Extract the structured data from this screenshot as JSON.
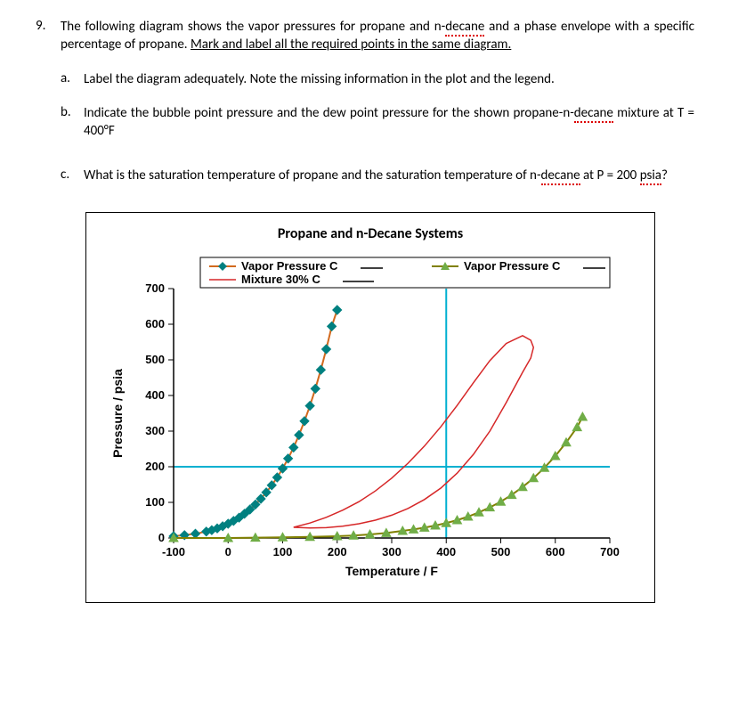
{
  "question": {
    "number": "9.",
    "text_a": "The following diagram shows the vapor pressures for propane and n-",
    "text_decane": "decane",
    "text_b": " and a phase envelope with a specific percentage of propane. ",
    "text_c_underlined": "Mark and label all the required points in the same diagram."
  },
  "subs": {
    "a": {
      "letter": "a.",
      "text": "Label the diagram adequately. Note the missing information in the plot and the legend."
    },
    "b": {
      "letter": "b.",
      "pre": "Indicate the bubble point pressure and the dew point pressure for the shown propane-n-",
      "decane": "decane",
      "post": " mixture at T = 400°F"
    },
    "c": {
      "letter": "c.",
      "pre": "What is the saturation temperature of propane and the saturation temperature of n-",
      "decane": "decane",
      "post": " at P = 200 ",
      "psia": "psia",
      "q": "?"
    }
  },
  "chart": {
    "title": "Propane and n-Decane Systems",
    "legend": {
      "s1": "Vapor Pressure C",
      "s2": "Mixture 30% C",
      "s3": "Vapor Pressure C"
    },
    "ylabel": "Pressure / psia",
    "xlabel": "Temperature / F",
    "xlim": [
      -100,
      700
    ],
    "xtick_step": 100,
    "ylim": [
      0,
      700
    ],
    "ytick_step": 100,
    "colors": {
      "propane_line": "#d2691e",
      "propane_marker": "#008080",
      "decane_line": "#808000",
      "decane_marker": "#70ad47",
      "mixture": "#d62728",
      "crosshair": "#00b0d0",
      "hline": "#00b0d0"
    },
    "crosshair": {
      "x": 400,
      "ymin": 0,
      "ymax": 700
    },
    "hline_y": 200,
    "series": {
      "propane_x": [
        -100,
        -80,
        -60,
        -40,
        -30,
        -20,
        -10,
        0,
        10,
        20,
        30,
        40,
        50,
        60,
        70,
        80,
        90,
        100,
        110,
        120,
        130,
        140,
        150,
        160,
        170,
        180,
        190,
        200
      ],
      "propane_y": [
        5,
        8,
        12,
        18,
        22,
        27,
        33,
        40,
        48,
        57,
        68,
        80,
        94,
        110,
        128,
        148,
        170,
        195,
        223,
        254,
        289,
        328,
        371,
        419,
        472,
        530,
        594,
        640
      ],
      "decane_x": [
        -100,
        0,
        50,
        100,
        150,
        200,
        230,
        260,
        290,
        320,
        340,
        360,
        380,
        400,
        420,
        440,
        460,
        480,
        500,
        520,
        540,
        560,
        580,
        600,
        620,
        640,
        650
      ],
      "decane_y": [
        0,
        0,
        1,
        2,
        3,
        5,
        7,
        10,
        14,
        20,
        24,
        29,
        35,
        42,
        50,
        60,
        72,
        86,
        102,
        121,
        143,
        168,
        197,
        230,
        268,
        311,
        340
      ],
      "mixture_x": [
        120,
        150,
        180,
        210,
        240,
        270,
        300,
        330,
        360,
        390,
        420,
        450,
        480,
        510,
        540,
        555,
        560,
        555,
        540,
        510,
        480,
        450,
        420,
        390,
        360,
        330,
        300,
        270,
        240,
        210,
        180,
        150,
        120
      ],
      "mixture_y": [
        30,
        42,
        58,
        78,
        102,
        132,
        168,
        210,
        258,
        312,
        372,
        436,
        498,
        546,
        568,
        555,
        535,
        505,
        465,
        380,
        300,
        235,
        182,
        140,
        108,
        83,
        64,
        50,
        40,
        33,
        29,
        28,
        30
      ]
    }
  }
}
